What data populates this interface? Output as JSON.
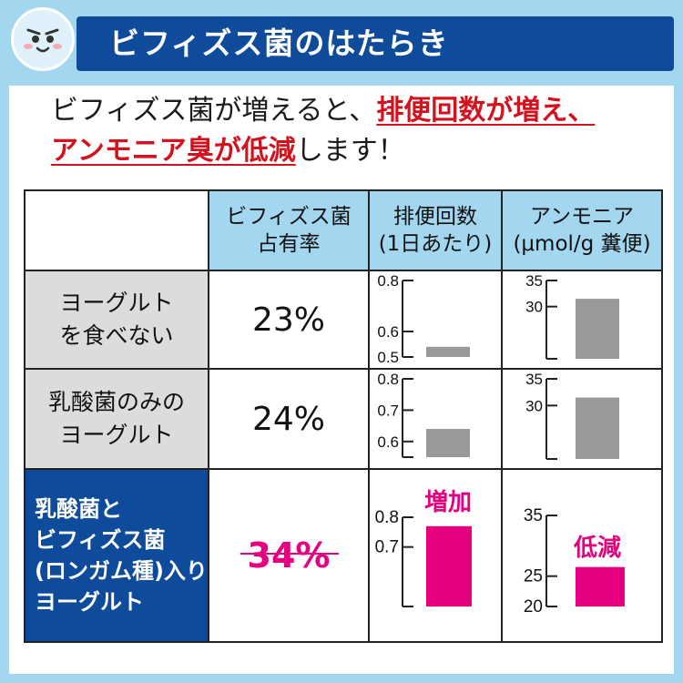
{
  "header": {
    "title": "ビフィズス菌のはたらき",
    "face": "smiling-face-icon"
  },
  "lead": {
    "part1": "ビフィズス菌が増えると、",
    "em1": "排便回数が増え、",
    "em2": "アンモニア臭が低減",
    "part2": "します！"
  },
  "table": {
    "col_headers": [
      {
        "line1": "ビフィズス菌",
        "line2": "占有率"
      },
      {
        "line1": "排便回数",
        "line2": "(1日あたり)"
      },
      {
        "line1": "アンモニア",
        "line2": "(μmol/g 糞便)"
      }
    ],
    "rows": [
      {
        "label_lines": [
          "ヨーグルト",
          "を食べない"
        ],
        "percent": "23%"
      },
      {
        "label_lines": [
          "乳酸菌のみの",
          "ヨーグルト"
        ],
        "percent": "24%"
      },
      {
        "label_lines": [
          "乳酸菌と",
          "ビフィズス菌",
          "(ロンガム種)入り",
          "ヨーグルト"
        ],
        "percent": "34%"
      }
    ]
  },
  "colors": {
    "title_bar": "#0e4b9a",
    "header_bg": "#a3d7ef",
    "accent_red": "#d2121d",
    "highlight_magenta": "#e4007f",
    "bar_gray": "#999999",
    "row_header_gray": "#dcdcdc"
  },
  "chart_data": [
    {
      "type": "bar",
      "id": "defecation-row1",
      "yticks": [
        "0.8",
        "0.6",
        "0.5"
      ],
      "ylim": [
        0.5,
        0.8
      ],
      "values": [
        0.54
      ],
      "color": "#999999"
    },
    {
      "type": "bar",
      "id": "ammonia-row1",
      "yticks": [
        "35",
        "30"
      ],
      "ylim": [
        20,
        35
      ],
      "values": [
        31.5
      ],
      "color": "#999999"
    },
    {
      "type": "bar",
      "id": "defecation-row2",
      "yticks": [
        "0.8",
        "0.7",
        "0.6"
      ],
      "ylim": [
        0.55,
        0.8
      ],
      "values": [
        0.64
      ],
      "color": "#999999"
    },
    {
      "type": "bar",
      "id": "ammonia-row2",
      "yticks": [
        "35",
        "30"
      ],
      "ylim": [
        20,
        35
      ],
      "values": [
        31.5
      ],
      "color": "#999999"
    },
    {
      "type": "bar",
      "id": "defecation-row3",
      "yticks": [
        "0.8",
        "0.7"
      ],
      "ylim": [
        0.5,
        0.8
      ],
      "values": [
        0.77
      ],
      "color": "#e4007f",
      "annotation": "増加"
    },
    {
      "type": "bar",
      "id": "ammonia-row3",
      "yticks": [
        "35",
        "25",
        "20"
      ],
      "ylim": [
        20,
        35
      ],
      "values": [
        26.5
      ],
      "color": "#e4007f",
      "annotation": "低減"
    }
  ]
}
